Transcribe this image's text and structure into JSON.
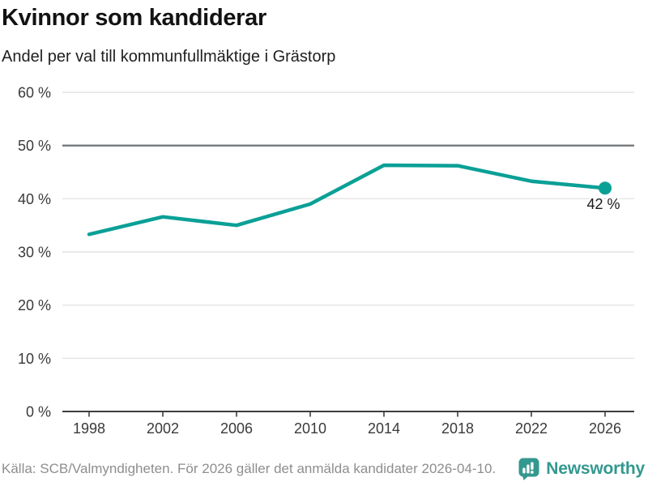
{
  "header": {
    "title": "Kvinnor som kandiderar",
    "subtitle": "Andel per val till kommunfullmäktige i Grästorp"
  },
  "chart_data": {
    "type": "line",
    "x": [
      "1998",
      "2002",
      "2006",
      "2010",
      "2014",
      "2018",
      "2022",
      "2026"
    ],
    "values": [
      33.3,
      36.6,
      35.0,
      39.0,
      46.3,
      46.2,
      43.3,
      42.0
    ],
    "title": "Kvinnor som kandiderar",
    "subtitle": "Andel per val till kommunfullmäktige i Grästorp",
    "xlabel": "",
    "ylabel": "",
    "ylim": [
      0,
      60
    ],
    "yticks": [
      0,
      10,
      20,
      30,
      40,
      50,
      60
    ],
    "ytick_labels": [
      "0 %",
      "10 %",
      "20 %",
      "30 %",
      "40 %",
      "50 %",
      "60 %"
    ],
    "reference_line": 50,
    "grid_on": true,
    "legend": "none",
    "end_label": "42 %",
    "colors": {
      "line": "#0aa096",
      "marker": "#0aa096",
      "grid": "#e4e4e4",
      "reference": "#75797c",
      "axis": "#3d3d3d",
      "tick_text": "#3a3a3a"
    }
  },
  "footer": {
    "source": "Källa: SCB/Valmyndigheten. För 2026 gäller det anmälda kandidater 2026-04-10.",
    "brand": "Newsworthy",
    "brand_color": "#33988f"
  }
}
